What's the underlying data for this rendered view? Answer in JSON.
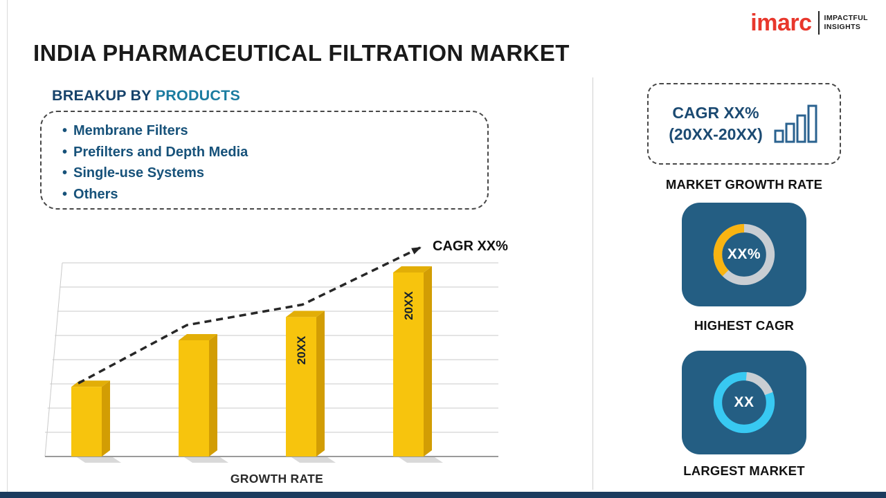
{
  "page": {
    "title": "INDIA PHARMACEUTICAL FILTRATION MARKET"
  },
  "logo": {
    "brand": "imarc",
    "tagline1": "IMPACTFUL",
    "tagline2": "INSIGHTS"
  },
  "breakup": {
    "heading_prefix": "BREAKUP BY",
    "heading_highlight": "PRODUCTS",
    "items": [
      "Membrane Filters",
      "Prefilters and Depth Media",
      "Single-use Systems",
      "Others"
    ]
  },
  "chart_data": {
    "type": "bar",
    "categories": [
      "",
      "",
      "20XX",
      "20XX"
    ],
    "values": [
      36,
      60,
      72,
      95
    ],
    "bar_labels": [
      "",
      "",
      "20XX",
      "20XX"
    ],
    "xlabel": "GROWTH RATE",
    "ylabel": "",
    "ylim": [
      0,
      100
    ],
    "grid": true,
    "trend_label": "CAGR XX%",
    "bar_color": "#F7C40D",
    "bar_color_side": "#D29D04",
    "bar_color_top": "#E2AE07"
  },
  "sidebar": {
    "growth_card": {
      "line1": "CAGR XX%",
      "line2": "(20XX-20XX)"
    },
    "market_growth_caption": "MARKET GROWTH RATE",
    "highest_cagr": {
      "value": "XX%",
      "caption": "HIGHEST CAGR",
      "accent": "#F9B411"
    },
    "largest_market": {
      "value": "XX",
      "caption": "LARGEST MARKET",
      "accent": "#38C9F2"
    }
  },
  "colors": {
    "stat_card_bg": "#245E83",
    "ring_gray": "#C9CED3",
    "footer": "#1B3B5E"
  }
}
